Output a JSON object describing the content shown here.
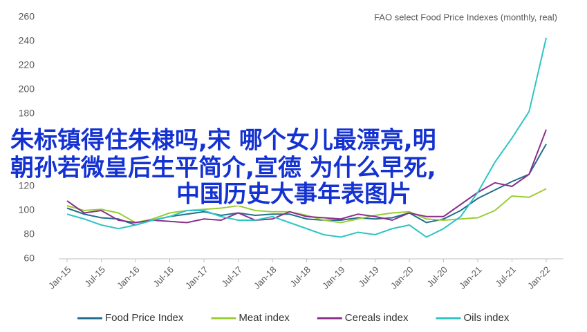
{
  "chart_data": {
    "type": "line",
    "subtitle": "FAO select Food Price Indexes (monthly, real)",
    "categories": [
      "Jan-15",
      null,
      "Jul-15",
      null,
      "Jan-16",
      null,
      "Jul-16",
      null,
      "Jan-17",
      null,
      "Jul-17",
      null,
      "Jan-18",
      null,
      "Jul-18",
      null,
      "Jan-19",
      null,
      "Jul-19",
      null,
      "Jan-20",
      null,
      "Jul-20",
      null,
      "Jan-21",
      null,
      "Jul-21",
      null,
      "Jan-22"
    ],
    "series": [
      {
        "name": "Food Price Index",
        "color": "#1f6e8c",
        "values": [
          102,
          97,
          94,
          93,
          88,
          92,
          95,
          97,
          99,
          96,
          98,
          96,
          97,
          97,
          93,
          92,
          92,
          94,
          93,
          94,
          98,
          90,
          93,
          100,
          110,
          117,
          124,
          130,
          155
        ]
      },
      {
        "name": "Meat index",
        "color": "#9acd32",
        "values": [
          104,
          100,
          101,
          98,
          90,
          93,
          98,
          100,
          101,
          102,
          104,
          100,
          99,
          99,
          96,
          92,
          90,
          93,
          96,
          98,
          99,
          93,
          92,
          93,
          94,
          100,
          112,
          111,
          118
        ]
      },
      {
        "name": "Cereals index",
        "color": "#8b2f8b",
        "values": [
          108,
          98,
          100,
          92,
          90,
          92,
          91,
          90,
          93,
          92,
          98,
          92,
          93,
          99,
          95,
          94,
          93,
          97,
          95,
          92,
          98,
          95,
          95,
          105,
          115,
          123,
          120,
          130,
          167
        ]
      },
      {
        "name": "Oils index",
        "color": "#2ec4c4",
        "values": [
          97,
          93,
          88,
          85,
          88,
          92,
          95,
          100,
          100,
          95,
          92,
          92,
          95,
          90,
          85,
          80,
          78,
          82,
          80,
          85,
          88,
          78,
          85,
          95,
          115,
          140,
          160,
          182,
          243
        ]
      }
    ],
    "ylim": [
      60,
      260
    ],
    "yticks": [
      60,
      80,
      100,
      120,
      140,
      160,
      180,
      200,
      220,
      240,
      260
    ],
    "grid": false,
    "annotations": [
      "朱标镇得住朱棣吗,宋 哪个女儿最漂亮,明",
      "朝孙若微皇后生平简介,宣德 为什么早死,",
      "中国历史大事年表图片"
    ]
  }
}
